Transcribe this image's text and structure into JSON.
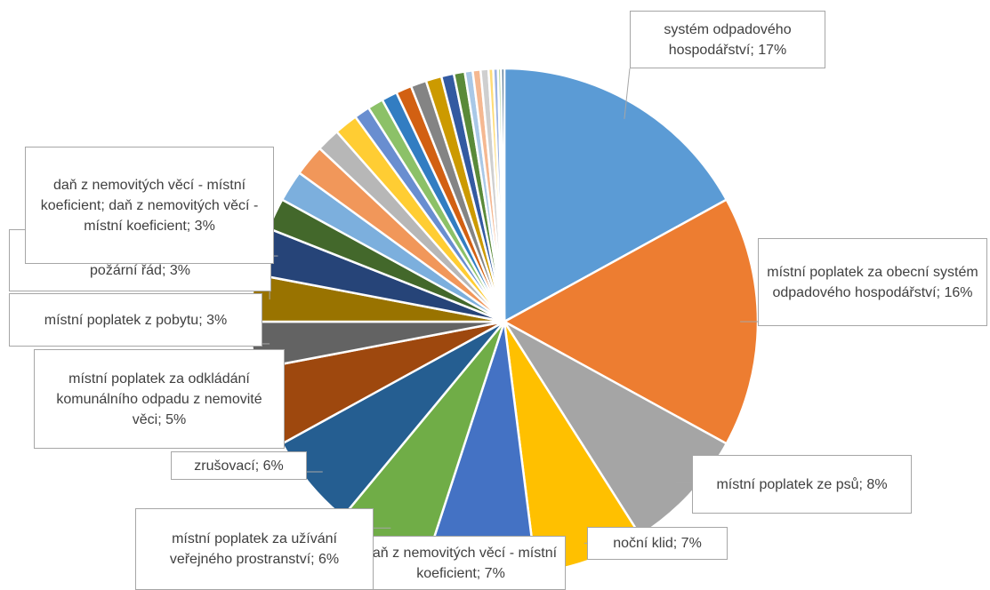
{
  "chart_data": {
    "type": "pie",
    "labels": [
      "systém odpadového hospodářství; 17%",
      "místní poplatek za obecní systém odpadového hospodářství; 16%",
      "místní poplatek ze psů; 8%",
      "noční klid; 7%",
      "daň z nemovitých věcí - místní koeficient; 7%",
      "místní poplatek za užívání veřejného prostranství; 6%",
      "zrušovací; 6%",
      "místní poplatek za odkládání komunálního odpadu z nemovité věci; 5%",
      "místní poplatek z pobytu; 3%",
      "požadavky na veřejný pořádek a požární řád; 3%",
      "daň z nemovitých věcí - místní koeficient; daň z nemovitých věcí - místní koeficient; 3%",
      null,
      null,
      null,
      null,
      null,
      null,
      null,
      null,
      null,
      null,
      null,
      null,
      null,
      null,
      null,
      null,
      null,
      null,
      null,
      null
    ],
    "values": [
      17,
      16,
      8,
      7,
      7,
      6,
      6,
      5,
      3,
      3,
      3,
      2,
      2,
      2,
      1.5,
      1.5,
      1,
      1,
      1,
      1,
      1,
      1,
      0.8,
      0.7,
      0.5,
      0.5,
      0.5,
      0.3,
      0.3,
      0.2,
      0.2
    ],
    "colors": [
      "#5B9BD5",
      "#ED7D31",
      "#A5A5A5",
      "#FFC000",
      "#4472C4",
      "#70AD47",
      "#255E91",
      "#9E480E",
      "#636363",
      "#997300",
      "#264478",
      "#43682B",
      "#7CAFDD",
      "#F1975A",
      "#B7B7B7",
      "#FFCD33",
      "#698ED0",
      "#8CC168",
      "#327DC2",
      "#D26012",
      "#848484",
      "#CC9A00",
      "#335AA1",
      "#5A8A39",
      "#A9C8E7",
      "#F5B891",
      "#CFCFCF",
      "#FFDC77",
      "#9DB3E2",
      "#ABD293",
      "#1E4C76"
    ]
  }
}
